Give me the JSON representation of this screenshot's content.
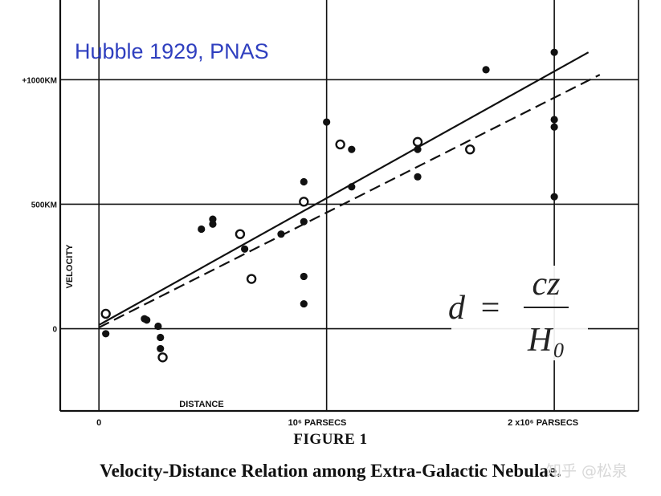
{
  "annotation": "Hubble 1929, PNAS",
  "formula": {
    "lhs": "d",
    "eq": "=",
    "numerator": "cz",
    "denominator": "H",
    "denominator_sub": "0"
  },
  "figure_title": "FIGURE 1",
  "caption": "Velocity-Distance Relation among Extra-Galactic Nebulae.",
  "watermark": "知乎 @松泉",
  "chart_data": {
    "type": "scatter",
    "xlabel": "DISTANCE",
    "ylabel": "VELOCITY",
    "x_unit": "parsecs",
    "y_unit": "km/s",
    "xlim": [
      -0.17,
      2.37
    ],
    "ylim": [
      -330,
      1320
    ],
    "x_ticks": [
      {
        "value": 0,
        "label": "0"
      },
      {
        "value": 1,
        "label": "10⁶ PARSECS"
      },
      {
        "value": 2,
        "label": "2 x10⁶ PARSECS"
      }
    ],
    "y_ticks": [
      {
        "value": 0,
        "label": "0"
      },
      {
        "value": 500,
        "label": "500KM"
      },
      {
        "value": 1000,
        "label": "+1000KM"
      }
    ],
    "grid": true,
    "x_scale_note": "x values in units of 10^6 parsecs",
    "series": [
      {
        "marker": "filled",
        "points": [
          [
            0.03,
            -20
          ],
          [
            0.2,
            40
          ],
          [
            0.21,
            35
          ],
          [
            0.26,
            10
          ],
          [
            0.27,
            -35
          ],
          [
            0.27,
            -80
          ],
          [
            0.45,
            400
          ],
          [
            0.5,
            440
          ],
          [
            0.5,
            420
          ],
          [
            0.64,
            320
          ],
          [
            0.8,
            380
          ],
          [
            0.9,
            590
          ],
          [
            0.9,
            430
          ],
          [
            0.9,
            210
          ],
          [
            0.9,
            100
          ],
          [
            1.0,
            830
          ],
          [
            1.11,
            720
          ],
          [
            1.11,
            570
          ],
          [
            1.4,
            720
          ],
          [
            1.4,
            610
          ],
          [
            1.7,
            1040
          ],
          [
            2.0,
            1110
          ],
          [
            2.0,
            840
          ],
          [
            2.0,
            810
          ],
          [
            2.0,
            530
          ]
        ]
      },
      {
        "marker": "open",
        "points": [
          [
            0.03,
            60
          ],
          [
            0.28,
            -115
          ],
          [
            0.62,
            380
          ],
          [
            0.67,
            200
          ],
          [
            0.9,
            510
          ],
          [
            1.06,
            740
          ],
          [
            1.4,
            750
          ],
          [
            1.63,
            720
          ]
        ]
      }
    ],
    "fit_lines": [
      {
        "style": "solid",
        "from": [
          0,
          15
        ],
        "to": [
          2.15,
          1110
        ]
      },
      {
        "style": "dashed",
        "from": [
          0,
          5
        ],
        "to": [
          2.2,
          1020
        ]
      }
    ]
  }
}
